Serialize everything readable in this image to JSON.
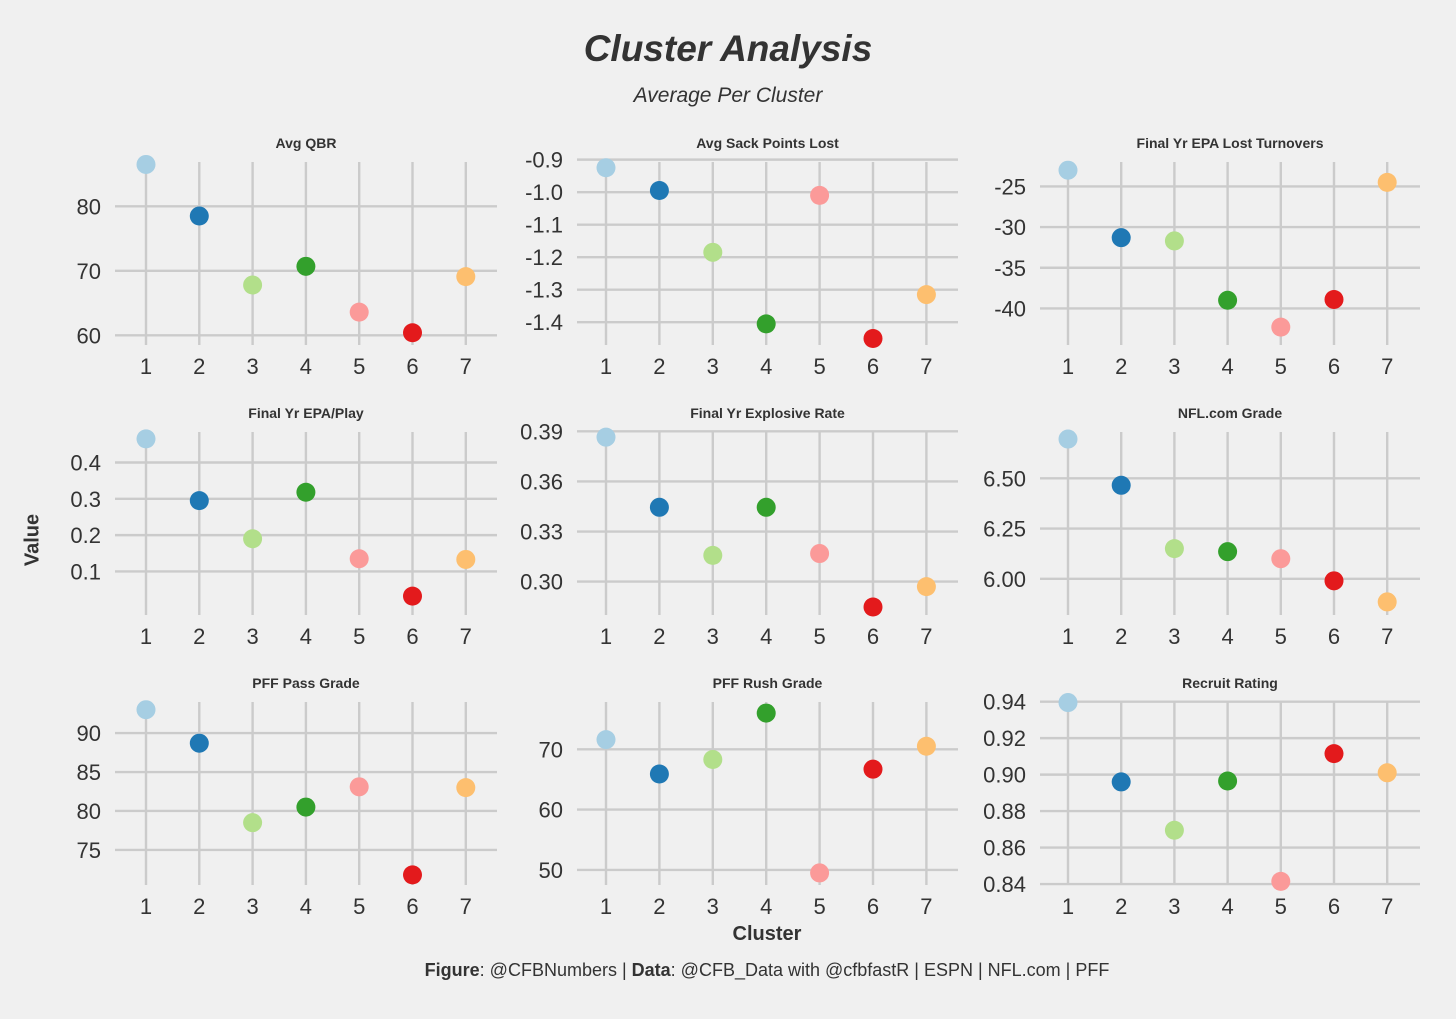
{
  "title": "Cluster Analysis",
  "subtitle": "Average Per Cluster",
  "ylabel": "Value",
  "xlabel": "Cluster",
  "caption": {
    "figure_label": "Figure",
    "figure_value": ": @CFBNumbers | ",
    "data_label": "Data",
    "data_value": ": @CFB_Data with @cfbfastR | ESPN | NFL.com | PFF"
  },
  "cluster_colors": [
    "#a6cee3",
    "#1f78b4",
    "#b2df8a",
    "#33a02c",
    "#fb9a99",
    "#e31a1c",
    "#fdbf6f"
  ],
  "chart_data": [
    {
      "type": "scatter",
      "title": "Avg QBR",
      "x": [
        1,
        2,
        3,
        4,
        5,
        6,
        7
      ],
      "values": [
        86.5,
        78.5,
        67.8,
        70.7,
        63.6,
        60.4,
        69.1
      ],
      "yticks": [
        60,
        70,
        80
      ],
      "ytick_labels": [
        "60",
        "70",
        "80"
      ],
      "ylim": [
        58.5,
        87.5
      ]
    },
    {
      "type": "scatter",
      "title": "Avg Sack Points Lost",
      "x": [
        1,
        2,
        3,
        4,
        5,
        6,
        7
      ],
      "values": [
        -0.925,
        -0.995,
        -1.185,
        -1.405,
        -1.01,
        -1.45,
        -1.315
      ],
      "yticks": [
        -1.4,
        -1.3,
        -1.2,
        -1.1,
        -1.0,
        -0.9
      ],
      "ytick_labels": [
        "-1.4",
        "-1.3",
        "-1.2",
        "-1.1",
        "-1.0",
        "-0.9"
      ],
      "ylim": [
        -1.47,
        -0.895
      ]
    },
    {
      "type": "scatter",
      "title": "Final Yr EPA Lost Turnovers",
      "x": [
        1,
        2,
        3,
        4,
        5,
        6,
        7
      ],
      "values": [
        -23.0,
        -31.3,
        -31.7,
        -39.0,
        -42.3,
        -38.9,
        -24.5
      ],
      "yticks": [
        -40,
        -35,
        -30,
        -25
      ],
      "ytick_labels": [
        "-40",
        "-35",
        "-30",
        "-25"
      ],
      "ylim": [
        -44.5,
        -21.5
      ]
    },
    {
      "type": "scatter",
      "title": "Final Yr EPA/Play",
      "x": [
        1,
        2,
        3,
        4,
        5,
        6,
        7
      ],
      "values": [
        0.465,
        0.295,
        0.19,
        0.318,
        0.135,
        0.032,
        0.133
      ],
      "yticks": [
        0.1,
        0.2,
        0.3,
        0.4
      ],
      "ytick_labels": [
        "0.1",
        "0.2",
        "0.3",
        "0.4"
      ],
      "ylim": [
        -0.02,
        0.495
      ]
    },
    {
      "type": "scatter",
      "title": "Final Yr Explosive Rate",
      "x": [
        1,
        2,
        3,
        4,
        5,
        6,
        7
      ],
      "values": [
        0.3865,
        0.3445,
        0.3157,
        0.3445,
        0.3168,
        0.2848,
        0.297
      ],
      "yticks": [
        0.3,
        0.33,
        0.36,
        0.39
      ],
      "ytick_labels": [
        "0.30",
        "0.33",
        "0.36",
        "0.39"
      ],
      "ylim": [
        0.28,
        0.392
      ]
    },
    {
      "type": "scatter",
      "title": "NFL.com Grade",
      "x": [
        1,
        2,
        3,
        4,
        5,
        6,
        7
      ],
      "values": [
        6.695,
        6.465,
        6.15,
        6.135,
        6.1,
        5.99,
        5.885
      ],
      "yticks": [
        6.0,
        6.25,
        6.5
      ],
      "ytick_labels": [
        "6.00",
        "6.25",
        "6.50"
      ],
      "ylim": [
        5.82,
        6.75
      ]
    },
    {
      "type": "scatter",
      "title": "PFF Pass Grade",
      "x": [
        1,
        2,
        3,
        4,
        5,
        6,
        7
      ],
      "values": [
        93.0,
        88.7,
        78.5,
        80.5,
        83.1,
        71.8,
        83.0
      ],
      "yticks": [
        75,
        80,
        85,
        90
      ],
      "ytick_labels": [
        "75",
        "80",
        "85",
        "90"
      ],
      "ylim": [
        70.5,
        94.5
      ]
    },
    {
      "type": "scatter",
      "title": "PFF Rush Grade",
      "x": [
        1,
        2,
        3,
        4,
        5,
        6,
        7
      ],
      "values": [
        71.6,
        65.9,
        68.3,
        76.0,
        49.5,
        66.7,
        70.5
      ],
      "yticks": [
        50,
        60,
        70
      ],
      "ytick_labels": [
        "50",
        "60",
        "70"
      ],
      "ylim": [
        47.5,
        78.5
      ]
    },
    {
      "type": "scatter",
      "title": "Recruit Rating",
      "x": [
        1,
        2,
        3,
        4,
        5,
        6,
        7
      ],
      "values": [
        0.9395,
        0.896,
        0.8695,
        0.8965,
        0.8415,
        0.9115,
        0.901
      ],
      "yticks": [
        0.84,
        0.86,
        0.88,
        0.9,
        0.92,
        0.94
      ],
      "ytick_labels": [
        "0.84",
        "0.86",
        "0.88",
        "0.90",
        "0.92",
        "0.94"
      ],
      "ylim": [
        0.8395,
        0.942
      ]
    }
  ]
}
